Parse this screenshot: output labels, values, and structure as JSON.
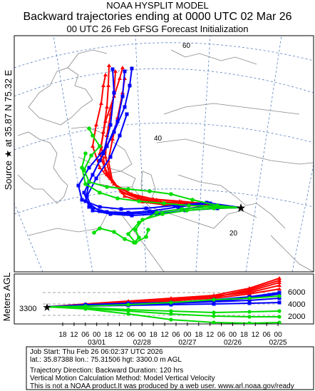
{
  "header": {
    "line1": "NOAA HYSPLIT MODEL",
    "line2": "Backward trajectories ending at 0000 UTC 02 Mar 26",
    "line3": "00 UTC 26 Feb    GFSG  Forecast Initialization"
  },
  "source_label": "Source ★ at   35.87 N   75.32 E",
  "map": {
    "lat_labels": [
      "60",
      "40",
      "20"
    ],
    "colors": {
      "run1": "#ff0000",
      "run2": "#0000ff",
      "run3": "#00dd00",
      "border": "#777777",
      "graticule": "#5580c0"
    },
    "source_marker": "star-icon"
  },
  "height_panel": {
    "ylabel": "Meters AGL",
    "start_height": "3300",
    "right_ticks": [
      "6000",
      "4000",
      "2000"
    ],
    "hour_ticks": [
      "18",
      "12",
      "06",
      "00",
      "18",
      "12",
      "06",
      "00",
      "18",
      "12",
      "06",
      "00",
      "18",
      "12",
      "06",
      "00",
      "18",
      "12",
      "06",
      "00"
    ],
    "date_ticks": [
      "03/01",
      "02/28",
      "02/27",
      "02/26",
      "02/25"
    ]
  },
  "info": {
    "job": "Job Start: Thu Feb 26 06:02:37 UTC 2026",
    "location": "lat.: 35.87388   lon.: 75.31506    hgt: 3300.0 m AGL",
    "direction": "Trajectory Direction: Backward        Duration: 120 hrs",
    "vertical": "Vertical Motion Calculation Method: Model Vertical Velocity",
    "disclaimer": "This is not a NOAA product.It was produced by a web user. www.arl.noaa.gov/ready"
  }
}
